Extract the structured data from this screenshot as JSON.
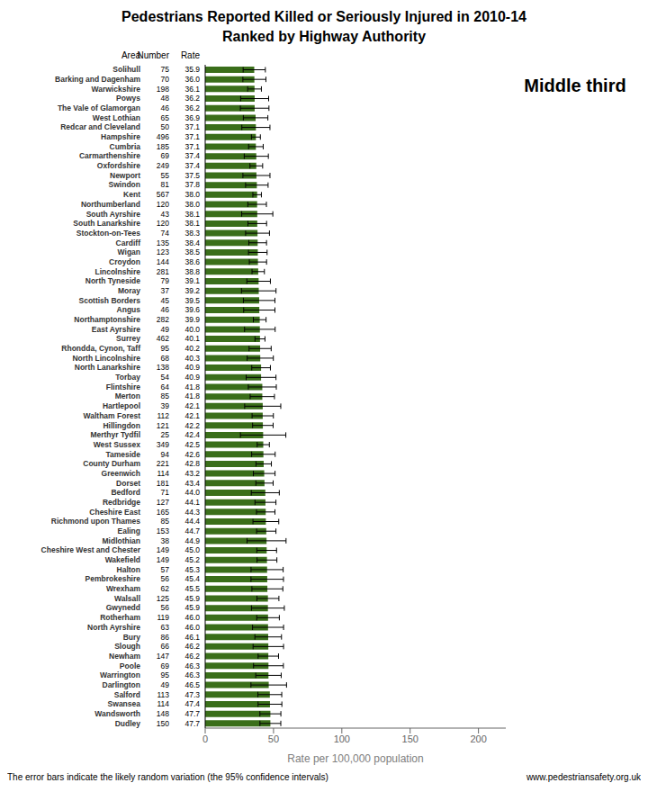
{
  "chart_data": {
    "type": "bar",
    "orientation": "horizontal",
    "title": "Pedestrians Reported Killed or Seriously Injured in 2010-14\nRanked by Highway Authority",
    "subtitle": "Middle third",
    "xlabel": "Rate per 100,000 population",
    "column_headers": [
      "Area",
      "Number",
      "Rate"
    ],
    "annotations": [
      "The error bars indicate the likely random variation (the 95% confidence intervals)",
      "www.pedestriansafety.org.uk"
    ],
    "categories": [
      "Solihull",
      "Barking and Dagenham",
      "Warwickshire",
      "Powys",
      "The Vale of Glamorgan",
      "West Lothian",
      "Redcar and Cleveland",
      "Hampshire",
      "Cumbria",
      "Carmarthenshire",
      "Oxfordshire",
      "Newport",
      "Swindon",
      "Kent",
      "Northumberland",
      "South Ayrshire",
      "South Lanarkshire",
      "Stockton-on-Tees",
      "Cardiff",
      "Wigan",
      "Croydon",
      "Lincolnshire",
      "North Tyneside",
      "Moray",
      "Scottish Borders",
      "Angus",
      "Northamptonshire",
      "East Ayrshire",
      "Surrey",
      "Rhondda, Cynon, Taff",
      "North Lincolnshire",
      "North Lanarkshire",
      "Torbay",
      "Flintshire",
      "Merton",
      "Hartlepool",
      "Waltham Forest",
      "Hillingdon",
      "Merthyr Tydfil",
      "West Sussex",
      "Tameside",
      "County Durham",
      "Greenwich",
      "Dorset",
      "Bedford",
      "Redbridge",
      "Cheshire East",
      "Richmond upon Thames",
      "Ealing",
      "Midlothian",
      "Cheshire West and Chester",
      "Wakefield",
      "Halton",
      "Pembrokeshire",
      "Wrexham",
      "Walsall",
      "Gwynedd",
      "Rotherham",
      "North Ayrshire",
      "Bury",
      "Slough",
      "Newham",
      "Poole",
      "Warrington",
      "Darlington",
      "Salford",
      "Swansea",
      "Wandsworth",
      "Dudley"
    ],
    "numbers": [
      75,
      70,
      198,
      48,
      46,
      65,
      50,
      496,
      185,
      69,
      249,
      55,
      81,
      567,
      120,
      43,
      120,
      74,
      135,
      123,
      144,
      281,
      79,
      37,
      45,
      46,
      282,
      49,
      462,
      95,
      68,
      138,
      54,
      64,
      85,
      39,
      112,
      121,
      25,
      349,
      94,
      221,
      114,
      181,
      71,
      127,
      165,
      85,
      153,
      38,
      149,
      149,
      57,
      56,
      62,
      125,
      56,
      119,
      63,
      86,
      66,
      147,
      69,
      95,
      49,
      113,
      114,
      148,
      150
    ],
    "values": [
      35.9,
      36.0,
      36.1,
      36.2,
      36.2,
      36.9,
      37.1,
      37.1,
      37.1,
      37.4,
      37.4,
      37.5,
      37.8,
      38.0,
      38.0,
      38.1,
      38.1,
      38.3,
      38.4,
      38.5,
      38.6,
      38.8,
      39.1,
      39.2,
      39.5,
      39.6,
      39.9,
      40.0,
      40.1,
      40.2,
      40.3,
      40.9,
      40.9,
      41.8,
      41.8,
      42.1,
      42.1,
      42.2,
      42.4,
      42.5,
      42.6,
      42.8,
      43.2,
      43.4,
      44.0,
      44.1,
      44.3,
      44.4,
      44.7,
      44.9,
      45.0,
      45.2,
      45.3,
      45.4,
      45.5,
      45.9,
      45.9,
      46.0,
      46.0,
      46.1,
      46.2,
      46.2,
      46.3,
      46.3,
      46.5,
      47.3,
      47.4,
      47.7,
      47.7
    ],
    "value_labels": [
      "35.9",
      "36.0",
      "36.1",
      "36.2",
      "36.2",
      "36.9",
      "37.1",
      "37.1",
      "37.1",
      "37.4",
      "37.4",
      "37.5",
      "37.8",
      "38.0",
      "38.0",
      "38.1",
      "38.1",
      "38.3",
      "38.4",
      "38.5",
      "38.6",
      "38.8",
      "39.1",
      "39.2",
      "39.5",
      "39.6",
      "39.9",
      "40.0",
      "40.1",
      "40.2",
      "40.3",
      "40.9",
      "40.9",
      "41.8",
      "41.8",
      "42.1",
      "42.1",
      "42.2",
      "42.4",
      "42.5",
      "42.6",
      "42.8",
      "43.2",
      "43.4",
      "44.0",
      "44.1",
      "44.3",
      "44.4",
      "44.7",
      "44.9",
      "45.0",
      "45.2",
      "45.3",
      "45.4",
      "45.5",
      "45.9",
      "45.9",
      "46.0",
      "46.0",
      "46.1",
      "46.2",
      "46.2",
      "46.3",
      "46.3",
      "46.5",
      "47.3",
      "47.4",
      "47.7",
      "47.7"
    ],
    "errors": [
      8.125,
      8.434,
      5.028,
      10.241,
      10.461,
      8.971,
      10.284,
      3.265,
      5.346,
      8.825,
      4.645,
      9.911,
      8.232,
      3.128,
      6.799,
      11.388,
      6.817,
      8.726,
      6.478,
      6.804,
      6.305,
      4.537,
      8.622,
      12.631,
      11.541,
      11.444,
      4.657,
      11.2,
      3.657,
      8.084,
      9.579,
      6.824,
      10.909,
      10.241,
      8.886,
      13.213,
      7.797,
      7.519,
      16.621,
      4.459,
      8.612,
      5.643,
      7.93,
      6.323,
      10.235,
      7.67,
      6.76,
      9.439,
      7.083,
      14.276,
      7.226,
      7.258,
      11.76,
      11.891,
      11.326,
      8.047,
      12.022,
      8.265,
      11.359,
      9.743,
      11.146,
      7.469,
      10.925,
      9.311,
      13.02,
      8.721,
      8.701,
      7.685,
      7.634
    ],
    "color": "#3a6e1a",
    "xlim": [
      0,
      220
    ],
    "xticks": [
      0,
      50,
      100,
      150,
      200
    ],
    "grid": false
  }
}
